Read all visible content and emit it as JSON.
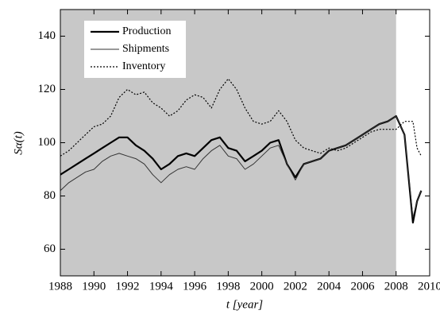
{
  "chart_data": {
    "type": "line",
    "x_label": "t [year]",
    "y_label": "Sα(t)",
    "xlim": [
      1988,
      2010
    ],
    "ylim": [
      50,
      150
    ],
    "xticks": [
      1988,
      1990,
      1992,
      1994,
      1996,
      1998,
      2000,
      2002,
      2004,
      2006,
      2008,
      2010
    ],
    "yticks": [
      60,
      80,
      100,
      120,
      140
    ],
    "shaded_region": [
      1988,
      2008
    ],
    "shade_color": "#c8c8c8",
    "legend": "upper left",
    "x": [
      1988,
      1988.5,
      1989,
      1989.5,
      1990,
      1990.5,
      1991,
      1991.5,
      1992,
      1992.5,
      1993,
      1993.5,
      1994,
      1994.5,
      1995,
      1995.5,
      1996,
      1996.5,
      1997,
      1997.5,
      1998,
      1998.5,
      1999,
      1999.5,
      2000,
      2000.5,
      2001,
      2001.5,
      2002,
      2002.5,
      2003,
      2003.5,
      2004,
      2004.5,
      2005,
      2005.5,
      2006,
      2006.5,
      2007,
      2007.5,
      2008,
      2008.5,
      2009,
      2009.25,
      2009.5
    ],
    "series": [
      {
        "name": "Production",
        "color": "#000000",
        "width": 2.2,
        "style": "solid",
        "values": [
          88,
          90,
          92,
          94,
          96,
          98,
          100,
          102,
          102,
          99,
          97,
          94,
          90,
          92,
          95,
          96,
          95,
          98,
          101,
          102,
          98,
          97,
          93,
          95,
          97,
          100,
          101,
          92,
          87,
          92,
          93,
          94,
          97,
          98,
          99,
          101,
          103,
          105,
          107,
          108,
          110,
          103,
          70,
          78,
          82
        ]
      },
      {
        "name": "Shipments",
        "color": "#333333",
        "width": 1,
        "style": "solid",
        "values": [
          82,
          85,
          87,
          89,
          90,
          93,
          95,
          96,
          95,
          94,
          92,
          88,
          85,
          88,
          90,
          91,
          90,
          94,
          97,
          99,
          95,
          94,
          90,
          92,
          95,
          98,
          99,
          92,
          86,
          92,
          93,
          94,
          97,
          98,
          99,
          101,
          103,
          105,
          107,
          108,
          110,
          103,
          72,
          78,
          82
        ]
      },
      {
        "name": "Inventory",
        "color": "#000000",
        "width": 1.2,
        "style": "dotted",
        "values": [
          95,
          97,
          100,
          103,
          106,
          107,
          110,
          117,
          120,
          118,
          119,
          115,
          113,
          110,
          112,
          116,
          118,
          117,
          113,
          120,
          124,
          120,
          113,
          108,
          107,
          108,
          112,
          108,
          101,
          98,
          97,
          96,
          98,
          97,
          98,
          100,
          102,
          104,
          105,
          105,
          105,
          108,
          108,
          98,
          95
        ]
      }
    ]
  }
}
